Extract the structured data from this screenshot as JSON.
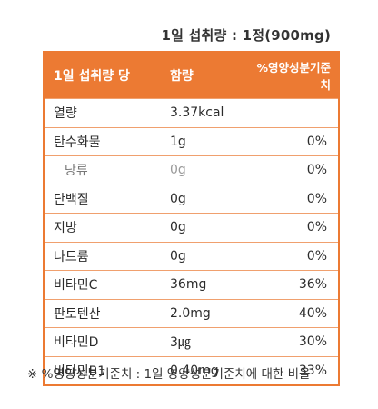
{
  "serving_text": "1일 섭취량 : 1정(900mg)",
  "header": {
    "col1": "1일 섭취량 당",
    "col2": "함량",
    "col3": "%영양성분기준치"
  },
  "rows": [
    {
      "name": "열량",
      "amount": "3.37kcal",
      "percent": ""
    },
    {
      "name": "탄수화물",
      "amount": "1g",
      "percent": "0%"
    },
    {
      "name": "당류",
      "amount": "0g",
      "percent": "0%"
    },
    {
      "name": "단백질",
      "amount": "0g",
      "percent": "0%"
    },
    {
      "name": "지방",
      "amount": "0g",
      "percent": "0%"
    },
    {
      "name": "나트륨",
      "amount": "0g",
      "percent": "0%"
    },
    {
      "name": "비타민C",
      "amount": "36mg",
      "percent": "36%"
    },
    {
      "name": "판토텐산",
      "amount": "2.0mg",
      "percent": "40%"
    },
    {
      "name": "비타민D",
      "amount": "3㎍",
      "percent": "30%"
    },
    {
      "name": "비타민B1",
      "amount": "0.40mg",
      "percent": "33%"
    }
  ],
  "footnote": "※ %영양성분기준치 : 1일 영양성분기준치에 대한 비율",
  "colors": {
    "accent": "#ec7a33",
    "divider": "#f0a06e"
  }
}
